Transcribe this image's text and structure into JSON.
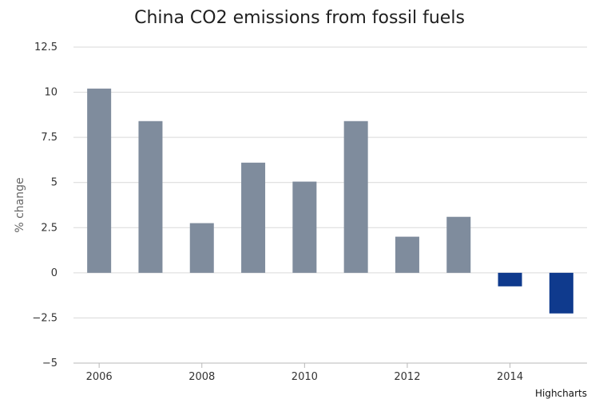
{
  "chart_data": {
    "type": "bar",
    "title": "China CO2 emissions from fossil fuels",
    "ylabel": "% change",
    "xlabel": "",
    "categories": [
      "2006",
      "2007",
      "2008",
      "2009",
      "2010",
      "2011",
      "2012",
      "2013",
      "2014",
      "2015"
    ],
    "values": [
      10.2,
      8.4,
      2.75,
      6.1,
      5.05,
      8.4,
      2.0,
      3.1,
      -0.75,
      -2.25
    ],
    "x_ticks": [
      "2006",
      "2008",
      "2010",
      "2012",
      "2014"
    ],
    "y_ticks": [
      "12.5",
      "10",
      "7.5",
      "5",
      "2.5",
      "0",
      "−2.5",
      "−5"
    ],
    "ylim": [
      -5,
      12.5
    ],
    "grid": true,
    "colors": {
      "positive": "#7f8c9d",
      "negative": "#0f3a8d",
      "grid": "#d9d9d9",
      "axis": "#b8b8b8"
    }
  },
  "credits": "Highcharts"
}
